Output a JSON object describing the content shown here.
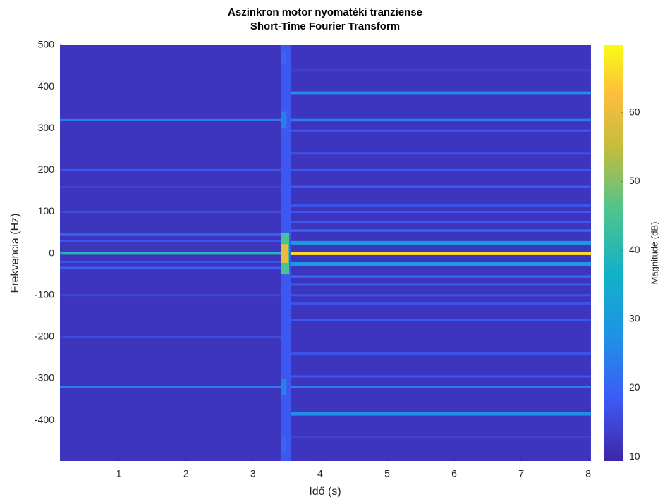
{
  "chart_data": {
    "type": "spectrogram",
    "title": "Aszinkron motor nyomatéki tranziense",
    "subtitle": "Short-Time Fourier Transform",
    "x_label": "Idő (s)",
    "y_label": "Frekvencia (Hz)",
    "colorbar_label": "Magnitude (dB)",
    "colormap": "parula",
    "xlim": [
      0.12,
      8.04
    ],
    "ylim": [
      -498,
      500
    ],
    "clim": [
      9.4,
      69.8
    ],
    "xticks": [
      1,
      2,
      3,
      4,
      5,
      6,
      7,
      8
    ],
    "yticks": [
      -400,
      -300,
      -200,
      -100,
      0,
      100,
      200,
      300,
      400,
      500
    ],
    "cticks": [
      10,
      20,
      30,
      40,
      50,
      60
    ],
    "background_db": 12,
    "bands": [
      {
        "f": 0,
        "t": [
          3.42,
          3.56
        ],
        "db": 18,
        "bw": 1000
      },
      {
        "f": 0,
        "t": [
          3.42,
          3.54
        ],
        "db": 45,
        "bw": 100
      },
      {
        "f": 0,
        "t": [
          3.42,
          3.52
        ],
        "db": 60,
        "bw": 45
      },
      {
        "f": 320,
        "t": [
          3.42,
          3.5
        ],
        "db": 24,
        "bw": 40
      },
      {
        "f": -320,
        "t": [
          3.42,
          3.5
        ],
        "db": 24,
        "bw": 40
      },
      {
        "f": 470,
        "t": [
          3.42,
          3.5
        ],
        "db": 20,
        "bw": 30
      },
      {
        "f": -460,
        "t": [
          3.42,
          3.5
        ],
        "db": 20,
        "bw": 40
      },
      {
        "f": 320,
        "t": [
          0.12,
          3.42
        ],
        "db": 24,
        "bw": 5
      },
      {
        "f": 200,
        "t": [
          0.12,
          3.42
        ],
        "db": 18,
        "bw": 5
      },
      {
        "f": 160,
        "t": [
          0.12,
          3.42
        ],
        "db": 14,
        "bw": 4
      },
      {
        "f": 100,
        "t": [
          0.12,
          3.42
        ],
        "db": 16,
        "bw": 5
      },
      {
        "f": 45,
        "t": [
          0.12,
          3.42
        ],
        "db": 20,
        "bw": 6
      },
      {
        "f": 30,
        "t": [
          0.12,
          3.42
        ],
        "db": 17,
        "bw": 5
      },
      {
        "f": 0,
        "t": [
          0.12,
          3.42
        ],
        "db": 40,
        "bw": 6
      },
      {
        "f": -20,
        "t": [
          0.12,
          3.42
        ],
        "db": 17,
        "bw": 5
      },
      {
        "f": -35,
        "t": [
          0.12,
          3.42
        ],
        "db": 19,
        "bw": 6
      },
      {
        "f": -100,
        "t": [
          0.12,
          3.42
        ],
        "db": 15,
        "bw": 5
      },
      {
        "f": -200,
        "t": [
          0.12,
          3.42
        ],
        "db": 16,
        "bw": 5
      },
      {
        "f": -320,
        "t": [
          0.12,
          3.42
        ],
        "db": 24,
        "bw": 5
      },
      {
        "f": 440,
        "t": [
          3.56,
          8.04
        ],
        "db": 14,
        "bw": 4
      },
      {
        "f": 385,
        "t": [
          3.56,
          8.04
        ],
        "db": 27,
        "bw": 8
      },
      {
        "f": 320,
        "t": [
          3.56,
          8.04
        ],
        "db": 24,
        "bw": 6
      },
      {
        "f": 295,
        "t": [
          3.56,
          8.04
        ],
        "db": 18,
        "bw": 5
      },
      {
        "f": 240,
        "t": [
          3.56,
          8.04
        ],
        "db": 17,
        "bw": 5
      },
      {
        "f": 200,
        "t": [
          3.56,
          8.04
        ],
        "db": 18,
        "bw": 5
      },
      {
        "f": 160,
        "t": [
          3.56,
          8.04
        ],
        "db": 18,
        "bw": 5
      },
      {
        "f": 115,
        "t": [
          3.56,
          8.04
        ],
        "db": 17,
        "bw": 6
      },
      {
        "f": 100,
        "t": [
          3.56,
          8.04
        ],
        "db": 18,
        "bw": 5
      },
      {
        "f": 75,
        "t": [
          3.56,
          8.04
        ],
        "db": 18,
        "bw": 5
      },
      {
        "f": 55,
        "t": [
          3.56,
          8.04
        ],
        "db": 20,
        "bw": 6
      },
      {
        "f": 25,
        "t": [
          3.56,
          8.04
        ],
        "db": 30,
        "bw": 10
      },
      {
        "f": 0,
        "t": [
          3.56,
          8.04
        ],
        "db": 66,
        "bw": 8
      },
      {
        "f": -25,
        "t": [
          3.56,
          8.04
        ],
        "db": 30,
        "bw": 10
      },
      {
        "f": -55,
        "t": [
          3.56,
          8.04
        ],
        "db": 20,
        "bw": 6
      },
      {
        "f": -75,
        "t": [
          3.56,
          8.04
        ],
        "db": 18,
        "bw": 5
      },
      {
        "f": -100,
        "t": [
          3.56,
          8.04
        ],
        "db": 17,
        "bw": 5
      },
      {
        "f": -120,
        "t": [
          3.56,
          8.04
        ],
        "db": 17,
        "bw": 5
      },
      {
        "f": -160,
        "t": [
          3.56,
          8.04
        ],
        "db": 18,
        "bw": 5
      },
      {
        "f": -240,
        "t": [
          3.56,
          8.04
        ],
        "db": 17,
        "bw": 5
      },
      {
        "f": -295,
        "t": [
          3.56,
          8.04
        ],
        "db": 18,
        "bw": 5
      },
      {
        "f": -320,
        "t": [
          3.56,
          8.04
        ],
        "db": 24,
        "bw": 6
      },
      {
        "f": -385,
        "t": [
          3.56,
          8.04
        ],
        "db": 27,
        "bw": 8
      },
      {
        "f": -440,
        "t": [
          3.56,
          8.04
        ],
        "db": 14,
        "bw": 4
      }
    ]
  }
}
